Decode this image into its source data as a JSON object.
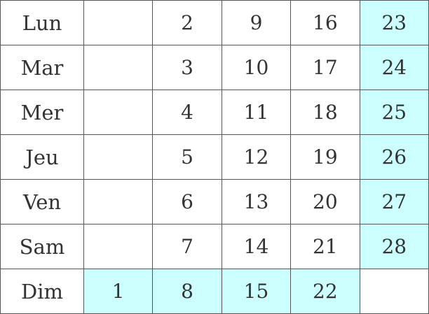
{
  "colors": {
    "highlight": "#ccffff",
    "border": "#555555",
    "text": "#333333"
  },
  "rows": [
    {
      "day": "Lun",
      "cells": [
        "",
        "2",
        "9",
        "16",
        "23"
      ],
      "highlight": [
        false,
        false,
        false,
        false,
        true
      ]
    },
    {
      "day": "Mar",
      "cells": [
        "",
        "3",
        "10",
        "17",
        "24"
      ],
      "highlight": [
        false,
        false,
        false,
        false,
        true
      ]
    },
    {
      "day": "Mer",
      "cells": [
        "",
        "4",
        "11",
        "18",
        "25"
      ],
      "highlight": [
        false,
        false,
        false,
        false,
        true
      ]
    },
    {
      "day": "Jeu",
      "cells": [
        "",
        "5",
        "12",
        "19",
        "26"
      ],
      "highlight": [
        false,
        false,
        false,
        false,
        true
      ]
    },
    {
      "day": "Ven",
      "cells": [
        "",
        "6",
        "13",
        "20",
        "27"
      ],
      "highlight": [
        false,
        false,
        false,
        false,
        true
      ]
    },
    {
      "day": "Sam",
      "cells": [
        "",
        "7",
        "14",
        "21",
        "28"
      ],
      "highlight": [
        false,
        false,
        false,
        false,
        true
      ]
    },
    {
      "day": "Dim",
      "cells": [
        "1",
        "8",
        "15",
        "22",
        ""
      ],
      "highlight": [
        true,
        true,
        true,
        true,
        false
      ]
    }
  ]
}
